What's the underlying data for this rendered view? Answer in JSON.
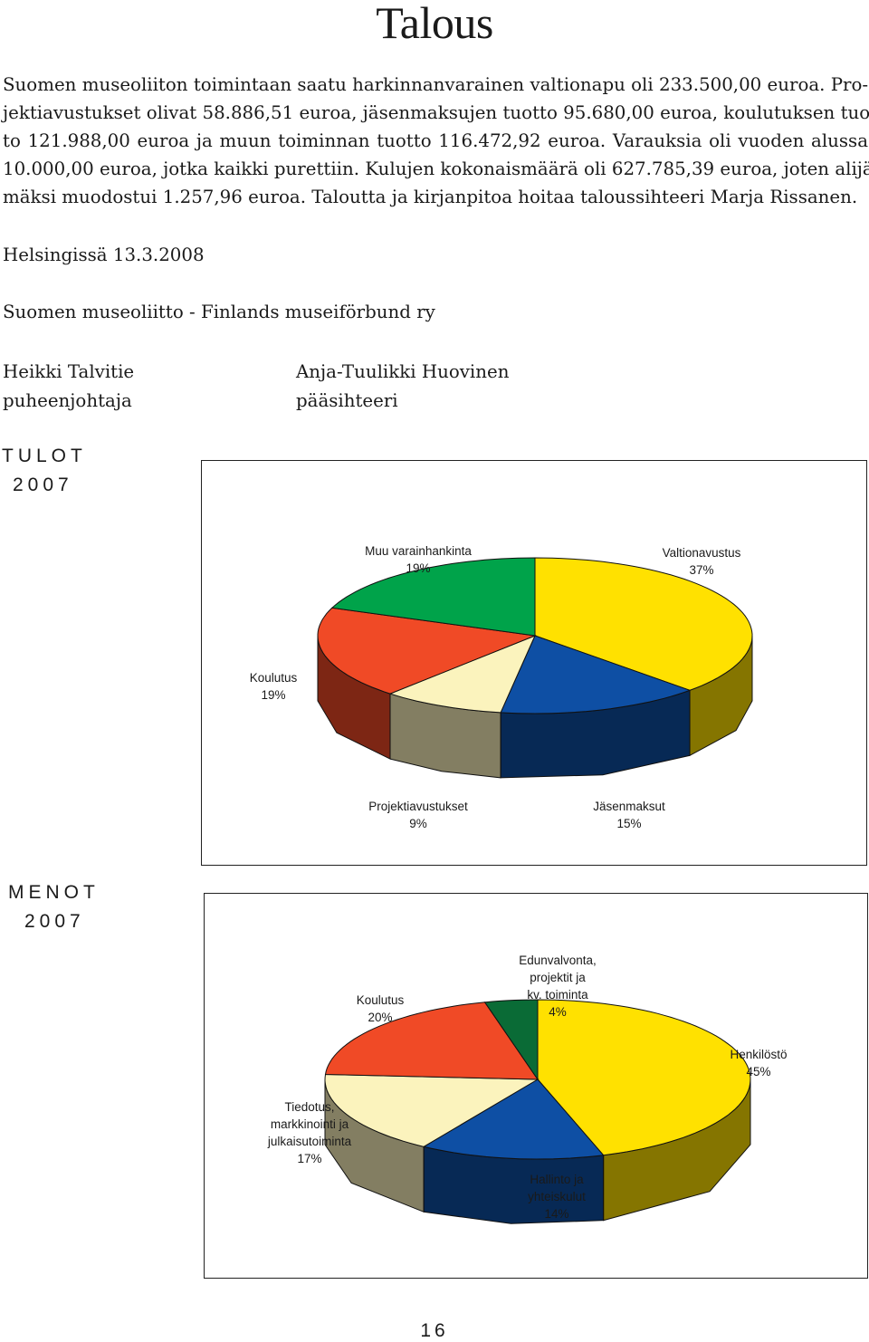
{
  "page": {
    "title": "Talous",
    "paragraph_lines": [
      "Suomen museoliiton toimintaan saatu harkinnanvarainen valtionapu oli 233.500,00 euroa. Pro-",
      "jektiavustukset olivat 58.886,51 euroa, jäsenmaksujen tuotto 95.680,00 euroa, koulutuksen tuot-",
      "to 121.988,00 euroa ja muun toiminnan tuotto 116.472,92 euroa. Varauksia oli vuoden alussa",
      "10.000,00 euroa, jotka kaikki purettiin. Kulujen kokonaismäärä oli 627.785,39 euroa, joten alijää-",
      "mäksi muodostui 1.257,96 euroa. Taloutta ja kirjanpitoa hoitaa taloussihteeri Marja Rissanen."
    ],
    "date_line": "Helsingissä 13.3.2008",
    "organization": "Suomen museoliitto - Finlands museiförbund ry",
    "signatories": [
      {
        "name": "Heikki Talvitie",
        "role": "puheenjohtaja"
      },
      {
        "name": "Anja-Tuulikki Huovinen",
        "role": "pääsihteeri"
      }
    ],
    "page_number": "16"
  },
  "chart_data": [
    {
      "type": "pie",
      "title": "TULOT",
      "subtitle": "2007",
      "slices": [
        {
          "name": "Valtionavustus",
          "value": 37,
          "label": "37%",
          "color": "#FFE100"
        },
        {
          "name": "Jäsenmaksut",
          "value": 15,
          "label": "15%",
          "color": "#0E4FA4"
        },
        {
          "name": "Projektiavustukset",
          "value": 9,
          "label": "9%",
          "color": "#FBF3BD"
        },
        {
          "name": "Koulutus",
          "value": 19,
          "label": "19%",
          "color": "#F04A26"
        },
        {
          "name": "Muu varainhankinta",
          "value": 19,
          "label": "19%",
          "color": "#00A34A"
        }
      ]
    },
    {
      "type": "pie",
      "title": "MENOT",
      "subtitle": "2007",
      "slices": [
        {
          "name": "Henkilöstö",
          "value": 45,
          "label": "45%",
          "color": "#FFE100"
        },
        {
          "name": "Hallinto ja yhteiskulut",
          "value": 14,
          "label": "14%",
          "color": "#0E4FA4"
        },
        {
          "name": "Tiedotus, markkinointi ja julkaisutoiminta",
          "value": 17,
          "label": "17%",
          "color": "#FBF3BD"
        },
        {
          "name": "Koulutus",
          "value": 20,
          "label": "20%",
          "color": "#F04A26"
        },
        {
          "name": "Edunvalvonta, projektit ja kv. toiminta",
          "value": 4,
          "label": "4%",
          "color": "#0A6B36"
        }
      ]
    }
  ]
}
